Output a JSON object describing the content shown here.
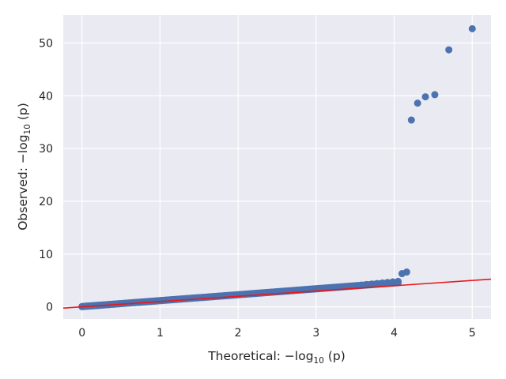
{
  "chart_data": {
    "type": "scatter",
    "title": "",
    "xlabel_main": "Theoretical: −log",
    "xlabel_sub": "10",
    "xlabel_tail": " (p)",
    "ylabel_main": "Observed: −log",
    "ylabel_sub": "10",
    "ylabel_tail": " (p)",
    "xlim": [
      -0.24,
      5.24
    ],
    "ylim": [
      -2.3,
      55.3
    ],
    "xticks": [
      0,
      1,
      2,
      3,
      4,
      5
    ],
    "yticks": [
      0,
      10,
      20,
      30,
      40,
      50
    ],
    "grid": true,
    "background": "#EAEAF2",
    "point_color": "#4C72B0",
    "line_color": "#E8181B",
    "reference_line": {
      "x0": -0.24,
      "y0": -0.24,
      "x1": 5.24,
      "y1": 5.24
    },
    "dense_band": {
      "x_start": 0.0,
      "x_end": 4.05,
      "y_at_start": 0.05,
      "y_at_end": 4.6
    },
    "points": [
      {
        "x": 4.1,
        "y": 6.3
      },
      {
        "x": 4.16,
        "y": 6.6
      },
      {
        "x": 4.22,
        "y": 35.4
      },
      {
        "x": 4.3,
        "y": 38.6
      },
      {
        "x": 4.4,
        "y": 39.8
      },
      {
        "x": 4.52,
        "y": 40.2
      },
      {
        "x": 4.7,
        "y": 48.7
      },
      {
        "x": 5.0,
        "y": 52.7
      }
    ]
  }
}
